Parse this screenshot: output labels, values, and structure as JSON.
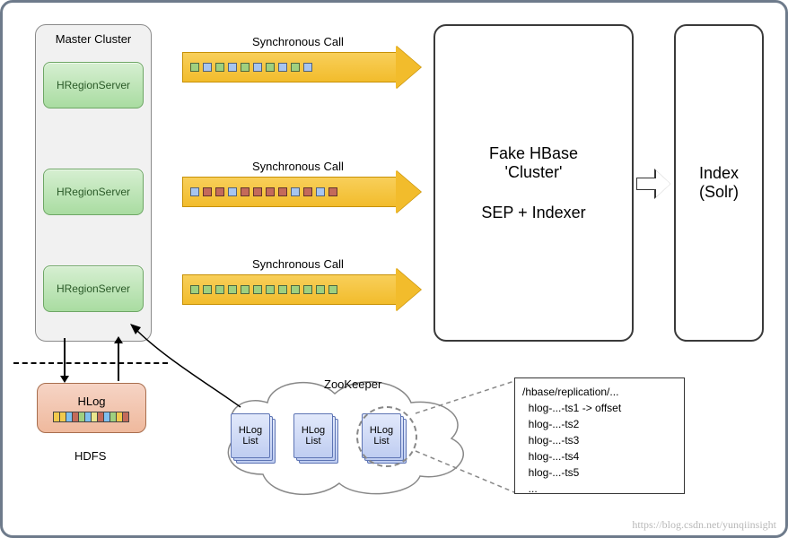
{
  "diagram_type": "architecture-flowchart",
  "background": "#ffffff",
  "frame_border_color": "#6e7b8b",
  "master_cluster": {
    "title": "Master Cluster",
    "bg": "#f1f1f1",
    "servers": [
      "HRegionServer",
      "HRegionServer",
      "HRegionServer"
    ],
    "server_style": {
      "fill_top": "#d6efd1",
      "fill_bottom": "#a9dca1",
      "border": "#6ea765",
      "text": "#2a5a28"
    }
  },
  "arrows": [
    {
      "label": "Synchronous Call",
      "squares": [
        "#9fd07f",
        "#a7c5f0",
        "#9fd07f",
        "#a7c5f0",
        "#9fd07f",
        "#a7c5f0",
        "#9fd07f",
        "#a7c5f0",
        "#9fd07f",
        "#a7c5f0"
      ]
    },
    {
      "label": "Synchronous Call",
      "squares": [
        "#a7c5f0",
        "#c46a5a",
        "#c46a5a",
        "#a7c5f0",
        "#c46a5a",
        "#c46a5a",
        "#c46a5a",
        "#c46a5a",
        "#a7c5f0",
        "#c46a5a",
        "#a7c5f0",
        "#c46a5a"
      ]
    },
    {
      "label": "Synchronous Call",
      "squares": [
        "#9fd07f",
        "#9fd07f",
        "#9fd07f",
        "#9fd07f",
        "#9fd07f",
        "#9fd07f",
        "#9fd07f",
        "#9fd07f",
        "#9fd07f",
        "#9fd07f",
        "#9fd07f",
        "#9fd07f"
      ]
    }
  ],
  "arrow_style": {
    "fill_top": "#f8cf5a",
    "fill_bottom": "#f2bc2c",
    "border": "#c79106"
  },
  "fake_cluster": {
    "line1": "Fake HBase",
    "line2": "'Cluster'",
    "line3": "SEP + Indexer"
  },
  "solr": {
    "line1": "Index",
    "line2": "(Solr)"
  },
  "hdfs": {
    "label": "HDFS",
    "hlog_title": "HLog",
    "cells": [
      "#f1c94d",
      "#f1c94d",
      "#7fc0ef",
      "#c46a5a",
      "#9fd07f",
      "#7fc0ef",
      "#e9e58d",
      "#c46a5a",
      "#7fc0ef",
      "#9fd07f",
      "#f1c94d",
      "#c46a5a"
    ]
  },
  "zookeeper": {
    "label": "ZooKeeper",
    "item_label": "HLog\nList",
    "count": 3,
    "page_style": {
      "fill_top": "#e2e9fb",
      "fill_bottom": "#bfcdf1",
      "border": "#5d74b4"
    }
  },
  "detail": {
    "lines": [
      "/hbase/replication/...",
      "  hlog-...-ts1 -> offset",
      "  hlog-...-ts2",
      "  hlog-...-ts3",
      "  hlog-...-ts4",
      "  hlog-...-ts5",
      "  ..."
    ]
  },
  "watermark": "https://blog.csdn.net/yunqiinsight",
  "fontsizes": {
    "title": 13,
    "node": 12,
    "big": 18,
    "detail": 12
  }
}
